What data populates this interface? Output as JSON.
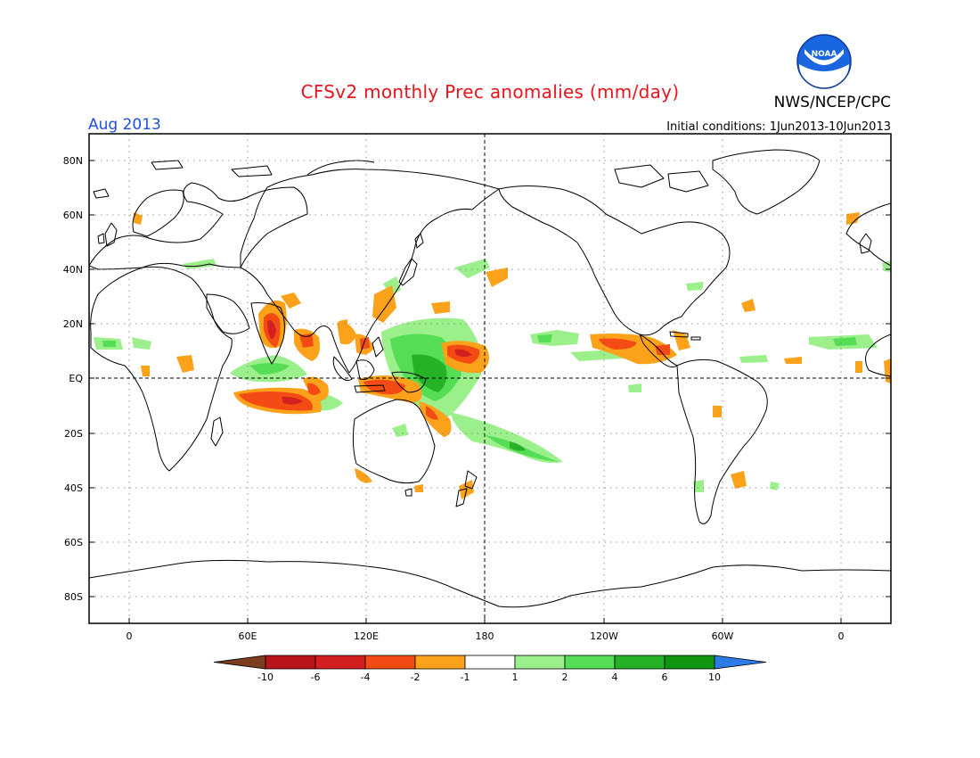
{
  "header": {
    "title": "CFSv2 monthly Prec anomalies (mm/day)",
    "period": "Aug 2013",
    "organization": "NWS/NCEP/CPC",
    "initial_conditions": "Initial conditions: 1Jun2013-10Jun2013",
    "logo_text": "NOAA"
  },
  "axes": {
    "lon_labels": [
      "0",
      "60E",
      "120E",
      "180",
      "120W",
      "60W",
      "0"
    ],
    "lat_labels": [
      "80N",
      "60N",
      "40N",
      "20N",
      "EQ",
      "20S",
      "40S",
      "60S",
      "80S"
    ]
  },
  "colorbar": {
    "bins": [
      {
        "color": "#7b3d1e"
      },
      {
        "color": "#b8141a"
      },
      {
        "color": "#d31f1f"
      },
      {
        "color": "#f44a14"
      },
      {
        "color": "#fba21a"
      },
      {
        "color": "#ffffff"
      },
      {
        "color": "#9cf08c"
      },
      {
        "color": "#55dd55"
      },
      {
        "color": "#26b226"
      },
      {
        "color": "#119611"
      },
      {
        "color": "#2c7be6"
      }
    ],
    "labels": [
      "-10",
      "-6",
      "-4",
      "-2",
      "-1",
      "1",
      "2",
      "4",
      "6",
      "10"
    ]
  },
  "anomaly_colors": {
    "strong_dry": "#d31f1f",
    "dry": "#f44a14",
    "weak_dry": "#fba21a",
    "weak_wet": "#9cf08c",
    "wet": "#55dd55",
    "strong_wet": "#26b226"
  }
}
